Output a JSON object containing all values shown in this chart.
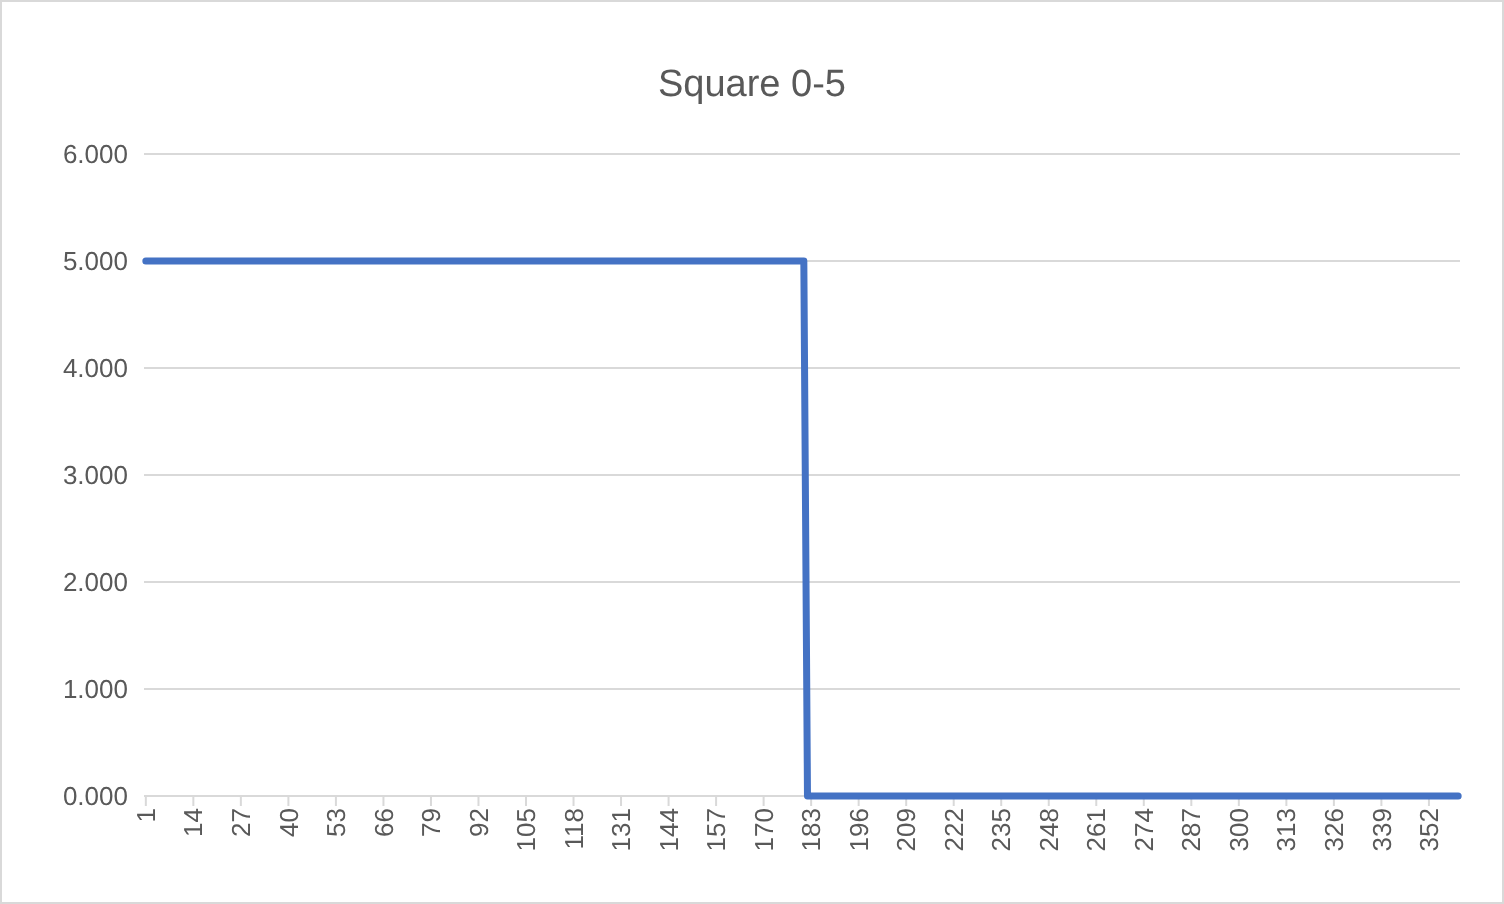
{
  "chart_data": {
    "type": "line",
    "title": "Square 0-5",
    "series": [
      {
        "color": "#4472c4",
        "x": [
          1,
          181,
          182,
          360
        ],
        "values": [
          5,
          5,
          0,
          0
        ]
      }
    ],
    "xlim": [
      0.5,
      360.5
    ],
    "xticks": [
      1,
      14,
      27,
      40,
      53,
      66,
      79,
      92,
      105,
      118,
      131,
      144,
      157,
      170,
      183,
      196,
      209,
      222,
      235,
      248,
      261,
      274,
      287,
      300,
      313,
      326,
      339,
      352
    ],
    "ylim": [
      0,
      6
    ],
    "yticks": [
      {
        "value": 0,
        "label": "0.000"
      },
      {
        "value": 1,
        "label": "1.000"
      },
      {
        "value": 2,
        "label": "2.000"
      },
      {
        "value": 3,
        "label": "3.000"
      },
      {
        "value": 4,
        "label": "4.000"
      },
      {
        "value": 5,
        "label": "5.000"
      },
      {
        "value": 6,
        "label": "6.000"
      }
    ],
    "grid": "y",
    "marker": "none",
    "line_style": "solid"
  }
}
